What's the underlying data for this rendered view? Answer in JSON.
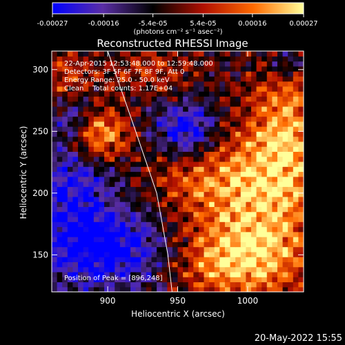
{
  "chart_data": {
    "type": "heatmap",
    "title": "Reconstructed RHESSI Image",
    "xlabel": "Heliocentric X (arcsec)",
    "ylabel": "Heliocentric Y (arcsec)",
    "xlim": [
      860,
      1040
    ],
    "ylim": [
      120,
      315
    ],
    "xticks": [
      900,
      950,
      1000
    ],
    "yticks": [
      150,
      200,
      250,
      300
    ],
    "colorbar": {
      "min": -0.00027,
      "max": 0.00027,
      "ticks": [
        -0.00027,
        -0.00016,
        -5.4e-05,
        5.4e-05,
        0.00016,
        0.00027
      ],
      "tick_labels": [
        "-0.00027",
        "-0.00016",
        "-5.4e-05",
        "5.4e-05",
        "0.00016",
        "0.00027"
      ],
      "units": "(photons cm⁻² s⁻¹ asec⁻²)",
      "colors": [
        "#0000ff",
        "#5a2ea6",
        "#000000",
        "#b01000",
        "#ff6a00",
        "#ffff9a"
      ]
    },
    "annotations": {
      "time_range": "22-Apr-2015 12:53:48.000 to 12:59:48.000",
      "detectors": "Detectors: 3F 5F 6F 7F 8F 9F, Att 0",
      "energy_range": "Energy Range: 25.0 - 50.0 keV",
      "method": "Clean    Total counts: 1.17E+04",
      "peak": "Position of Peak = [896,248]"
    },
    "limb": {
      "points": [
        [
          900,
          315
        ],
        [
          920,
          250
        ],
        [
          935,
          200
        ],
        [
          943,
          150
        ],
        [
          946,
          120
        ]
      ]
    },
    "features": [
      {
        "kind": "hot",
        "x": 896,
        "y": 248,
        "sx": 14,
        "sy": 16,
        "amp": 1.0
      },
      {
        "kind": "hot",
        "x": 1010,
        "y": 190,
        "sx": 30,
        "sy": 55,
        "amp": 0.9
      },
      {
        "kind": "hot",
        "x": 985,
        "y": 145,
        "sx": 30,
        "sy": 20,
        "amp": 0.75
      },
      {
        "kind": "hot",
        "x": 962,
        "y": 215,
        "sx": 25,
        "sy": 25,
        "amp": 0.6
      },
      {
        "kind": "hot",
        "x": 1030,
        "y": 255,
        "sx": 18,
        "sy": 45,
        "amp": 0.7
      },
      {
        "kind": "hot",
        "x": 870,
        "y": 290,
        "sx": 14,
        "sy": 20,
        "amp": 0.55
      },
      {
        "kind": "hot",
        "x": 930,
        "y": 300,
        "sx": 25,
        "sy": 15,
        "amp": 0.5
      },
      {
        "kind": "cold",
        "x": 958,
        "y": 250,
        "sx": 16,
        "sy": 16,
        "amp": 1.0
      },
      {
        "kind": "cold",
        "x": 900,
        "y": 155,
        "sx": 30,
        "sy": 20,
        "amp": 0.85
      },
      {
        "kind": "cold",
        "x": 875,
        "y": 200,
        "sx": 20,
        "sy": 30,
        "amp": 0.6
      },
      {
        "kind": "cold",
        "x": 1030,
        "y": 305,
        "sx": 12,
        "sy": 10,
        "amp": 0.5
      },
      {
        "kind": "cold",
        "x": 875,
        "y": 265,
        "sx": 12,
        "sy": 12,
        "amp": 0.5
      }
    ]
  },
  "footer": {
    "timestamp": "20-May-2022 15:55"
  }
}
